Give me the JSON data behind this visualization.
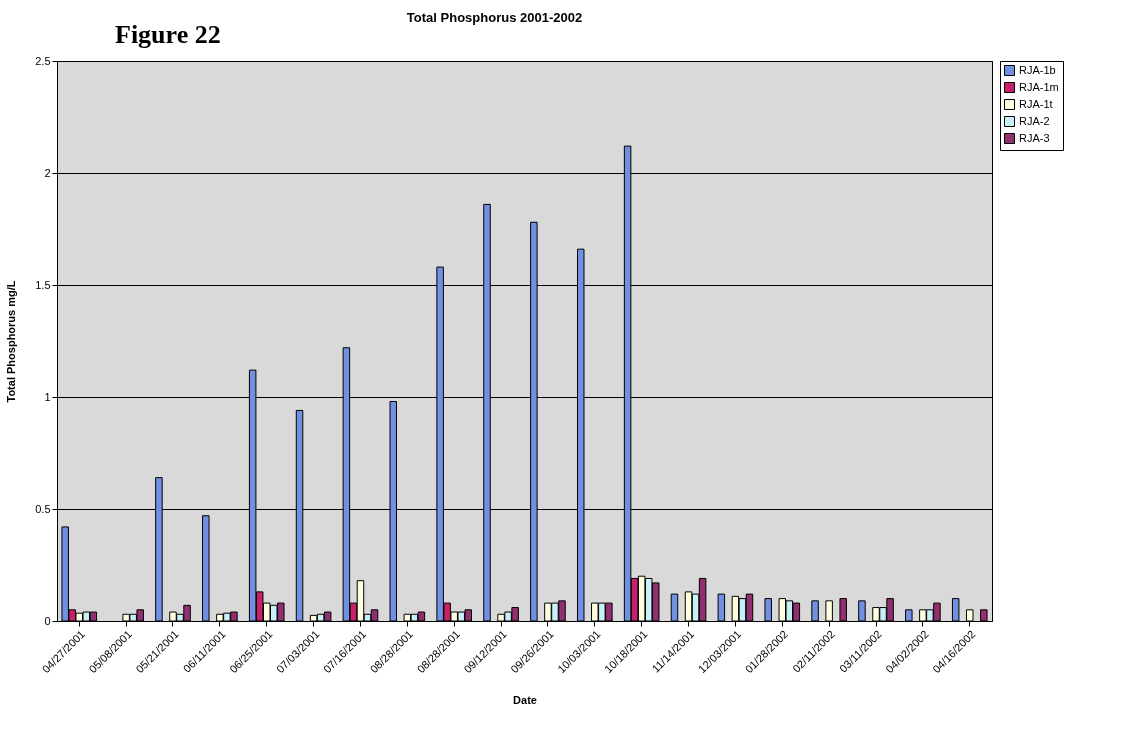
{
  "chart_data": {
    "type": "bar",
    "title": "Total Phosphorus 2001-2002",
    "xlabel": "Date",
    "ylabel": "Total Phosphorus mg/L",
    "annotations": [
      "Figure 22"
    ],
    "categories": [
      "04/27/2001",
      "05/08/2001",
      "05/21/2001",
      "06/11/2001",
      "06/25/2001",
      "07/03/2001",
      "07/16/2001",
      "08/28/2001",
      "08/28/2001",
      "09/12/2001",
      "09/26/2001",
      "10/03/2001",
      "10/18/2001",
      "11/14/2001",
      "12/03/2001",
      "01/28/2002",
      "02/11/2002",
      "03/11/2002",
      "04/02/2002",
      "04/16/2002"
    ],
    "series": [
      {
        "name": "RJA-1b",
        "color": "#7090e0",
        "values": [
          0.42,
          null,
          0.64,
          0.47,
          1.12,
          0.94,
          1.22,
          0.98,
          1.58,
          1.86,
          1.78,
          1.66,
          2.12,
          0.12,
          0.12,
          0.1,
          0.09,
          0.09,
          0.05,
          0.1
        ]
      },
      {
        "name": "RJA-1m",
        "color": "#c8206a",
        "values": [
          0.05,
          null,
          null,
          null,
          0.13,
          null,
          0.08,
          null,
          0.08,
          null,
          null,
          null,
          0.19,
          null,
          null,
          null,
          null,
          null,
          null,
          null
        ]
      },
      {
        "name": "RJA-1t",
        "color": "#ffffe0",
        "values": [
          0.035,
          0.03,
          0.04,
          0.03,
          0.08,
          0.025,
          0.18,
          0.03,
          0.04,
          0.03,
          0.08,
          0.08,
          0.2,
          0.13,
          0.11,
          0.1,
          0.09,
          0.06,
          0.05,
          0.05
        ]
      },
      {
        "name": "RJA-2",
        "color": "#c8f0f8",
        "values": [
          0.04,
          0.03,
          0.03,
          0.035,
          0.07,
          0.03,
          0.03,
          0.03,
          0.04,
          0.04,
          0.08,
          0.08,
          0.19,
          0.12,
          0.1,
          0.09,
          null,
          0.06,
          0.05,
          null
        ]
      },
      {
        "name": "RJA-3",
        "color": "#903070",
        "values": [
          0.04,
          0.05,
          0.07,
          0.04,
          0.08,
          0.04,
          0.05,
          0.04,
          0.05,
          0.06,
          0.09,
          0.08,
          0.17,
          0.19,
          0.12,
          0.08,
          0.1,
          0.1,
          0.08,
          0.05
        ]
      }
    ],
    "ylim": [
      0,
      2.5
    ],
    "yticks": [
      0,
      0.5,
      1,
      1.5,
      2,
      2.5
    ],
    "grid": "y",
    "legend": "right"
  }
}
